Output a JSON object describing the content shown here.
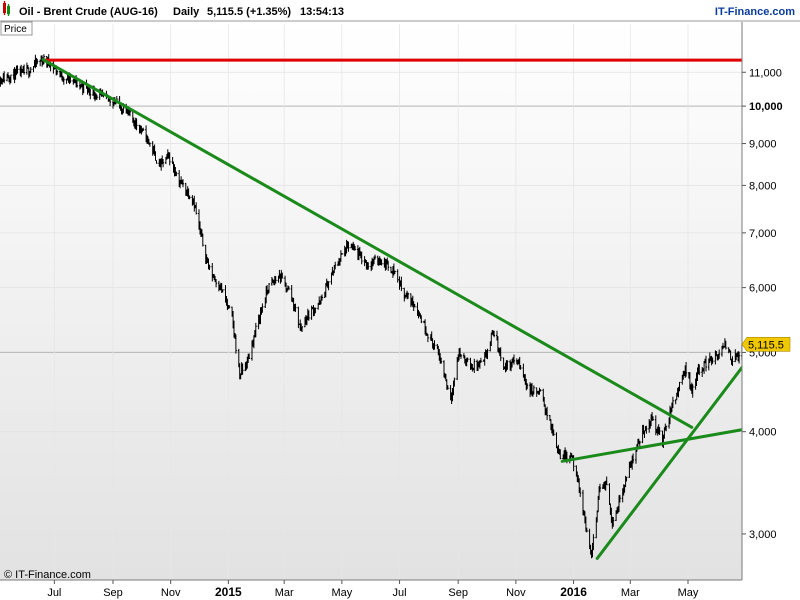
{
  "header": {
    "instrument": "Oil - Brent Crude (AUG-16)",
    "interval": "Daily",
    "last": "5,115.5 (+1.35%)",
    "time": "13:54:13",
    "brand": "IT-Finance.com"
  },
  "pane_label": "Price",
  "copyright": "© IT-Finance.com",
  "last_price_tag": "5,115.5",
  "colors": {
    "background_top": "#ffffff",
    "background_bottom": "#e2e2e2",
    "price_line": "#000000",
    "resistance": "#e00000",
    "trendline": "#1a8a1a",
    "tag_fill": "#f0c800",
    "brand_blue": "#0a3c9c"
  },
  "chart_data": {
    "type": "line",
    "scale": "log",
    "ylim": [
      2650,
      12600
    ],
    "y_ticks": [
      {
        "value": 3000,
        "label": "3,000"
      },
      {
        "value": 4000,
        "label": "4,000"
      },
      {
        "value": 5000,
        "label": "5,000"
      },
      {
        "value": 6000,
        "label": "6,000"
      },
      {
        "value": 7000,
        "label": "7,000"
      },
      {
        "value": 8000,
        "label": "8,000"
      },
      {
        "value": 9000,
        "label": "9,000"
      },
      {
        "value": 10000,
        "label": "10,000",
        "bold": true
      },
      {
        "value": 11000,
        "label": "11,000"
      }
    ],
    "x_ticks": [
      {
        "label": "Jul",
        "date": "2014-07-01"
      },
      {
        "label": "Sep",
        "date": "2014-09-01"
      },
      {
        "label": "Nov",
        "date": "2014-11-01"
      },
      {
        "label": "2015",
        "date": "2015-01-01",
        "bold": true
      },
      {
        "label": "Mar",
        "date": "2015-03-01"
      },
      {
        "label": "May",
        "date": "2015-05-01"
      },
      {
        "label": "Jul",
        "date": "2015-07-01"
      },
      {
        "label": "Sep",
        "date": "2015-09-01"
      },
      {
        "label": "Nov",
        "date": "2015-11-01"
      },
      {
        "label": "2016",
        "date": "2016-01-01",
        "bold": true
      },
      {
        "label": "Mar",
        "date": "2016-03-01"
      },
      {
        "label": "May",
        "date": "2016-05-01"
      }
    ],
    "x_range": [
      "2014-05-01",
      "2016-07-12"
    ],
    "series": [
      {
        "style": "ohlc-bars",
        "points": [
          [
            "2014-05-01",
            10750
          ],
          [
            "2014-05-15",
            10900
          ],
          [
            "2014-06-01",
            11000
          ],
          [
            "2014-06-12",
            11280
          ],
          [
            "2014-06-19",
            11400
          ],
          [
            "2014-06-26",
            11300
          ],
          [
            "2014-07-08",
            10900
          ],
          [
            "2014-07-22",
            10700
          ],
          [
            "2014-08-05",
            10500
          ],
          [
            "2014-08-20",
            10250
          ],
          [
            "2014-09-02",
            10150
          ],
          [
            "2014-09-15",
            9850
          ],
          [
            "2014-09-28",
            9450
          ],
          [
            "2014-10-10",
            9000
          ],
          [
            "2014-10-20",
            8450
          ],
          [
            "2014-10-30",
            8700
          ],
          [
            "2014-11-10",
            8100
          ],
          [
            "2014-11-25",
            7700
          ],
          [
            "2014-12-01",
            7100
          ],
          [
            "2014-12-12",
            6300
          ],
          [
            "2014-12-24",
            6000
          ],
          [
            "2015-01-05",
            5500
          ],
          [
            "2015-01-13",
            4700
          ],
          [
            "2015-01-22",
            4900
          ],
          [
            "2015-02-02",
            5500
          ],
          [
            "2015-02-12",
            6000
          ],
          [
            "2015-02-24",
            6200
          ],
          [
            "2015-03-08",
            5900
          ],
          [
            "2015-03-18",
            5350
          ],
          [
            "2015-03-28",
            5600
          ],
          [
            "2015-04-08",
            5750
          ],
          [
            "2015-04-18",
            6150
          ],
          [
            "2015-04-28",
            6500
          ],
          [
            "2015-05-08",
            6750
          ],
          [
            "2015-05-18",
            6600
          ],
          [
            "2015-05-28",
            6400
          ],
          [
            "2015-06-10",
            6500
          ],
          [
            "2015-06-25",
            6300
          ],
          [
            "2015-07-06",
            5900
          ],
          [
            "2015-07-18",
            5700
          ],
          [
            "2015-07-30",
            5300
          ],
          [
            "2015-08-12",
            4950
          ],
          [
            "2015-08-24",
            4400
          ],
          [
            "2015-09-02",
            5000
          ],
          [
            "2015-09-14",
            4800
          ],
          [
            "2015-09-28",
            4850
          ],
          [
            "2015-10-08",
            5300
          ],
          [
            "2015-10-20",
            4800
          ],
          [
            "2015-11-02",
            4900
          ],
          [
            "2015-11-15",
            4500
          ],
          [
            "2015-11-28",
            4450
          ],
          [
            "2015-12-08",
            4050
          ],
          [
            "2015-12-18",
            3750
          ],
          [
            "2015-12-30",
            3750
          ],
          [
            "2016-01-08",
            3350
          ],
          [
            "2016-01-20",
            2800
          ],
          [
            "2016-01-28",
            3400
          ],
          [
            "2016-02-05",
            3450
          ],
          [
            "2016-02-11",
            3100
          ],
          [
            "2016-02-22",
            3400
          ],
          [
            "2016-03-03",
            3700
          ],
          [
            "2016-03-14",
            4000
          ],
          [
            "2016-03-24",
            4150
          ],
          [
            "2016-04-04",
            3900
          ],
          [
            "2016-04-14",
            4300
          ],
          [
            "2016-04-22",
            4550
          ],
          [
            "2016-04-28",
            4800
          ],
          [
            "2016-05-05",
            4500
          ],
          [
            "2016-05-12",
            4750
          ],
          [
            "2016-05-24",
            4900
          ],
          [
            "2016-06-02",
            4950
          ],
          [
            "2016-06-10",
            5100
          ],
          [
            "2016-06-17",
            4900
          ],
          [
            "2016-06-27",
            5000
          ],
          [
            "2016-07-06",
            5115.5
          ]
        ]
      }
    ],
    "drawings": [
      {
        "kind": "horizontal",
        "color": "resistance",
        "value": 11380,
        "from": "2014-06-19",
        "to": "2016-07-12"
      },
      {
        "kind": "trend",
        "color": "trendline",
        "from": [
          "2014-06-19",
          11400
        ],
        "to": [
          "2016-05-05",
          4050
        ]
      },
      {
        "kind": "trend",
        "color": "trendline",
        "from": [
          "2015-12-20",
          3680
        ],
        "to": [
          "2016-07-12",
          4050
        ]
      },
      {
        "kind": "trend",
        "color": "trendline",
        "from": [
          "2016-01-26",
          2800
        ],
        "to": [
          "2016-07-12",
          5050
        ]
      }
    ]
  }
}
